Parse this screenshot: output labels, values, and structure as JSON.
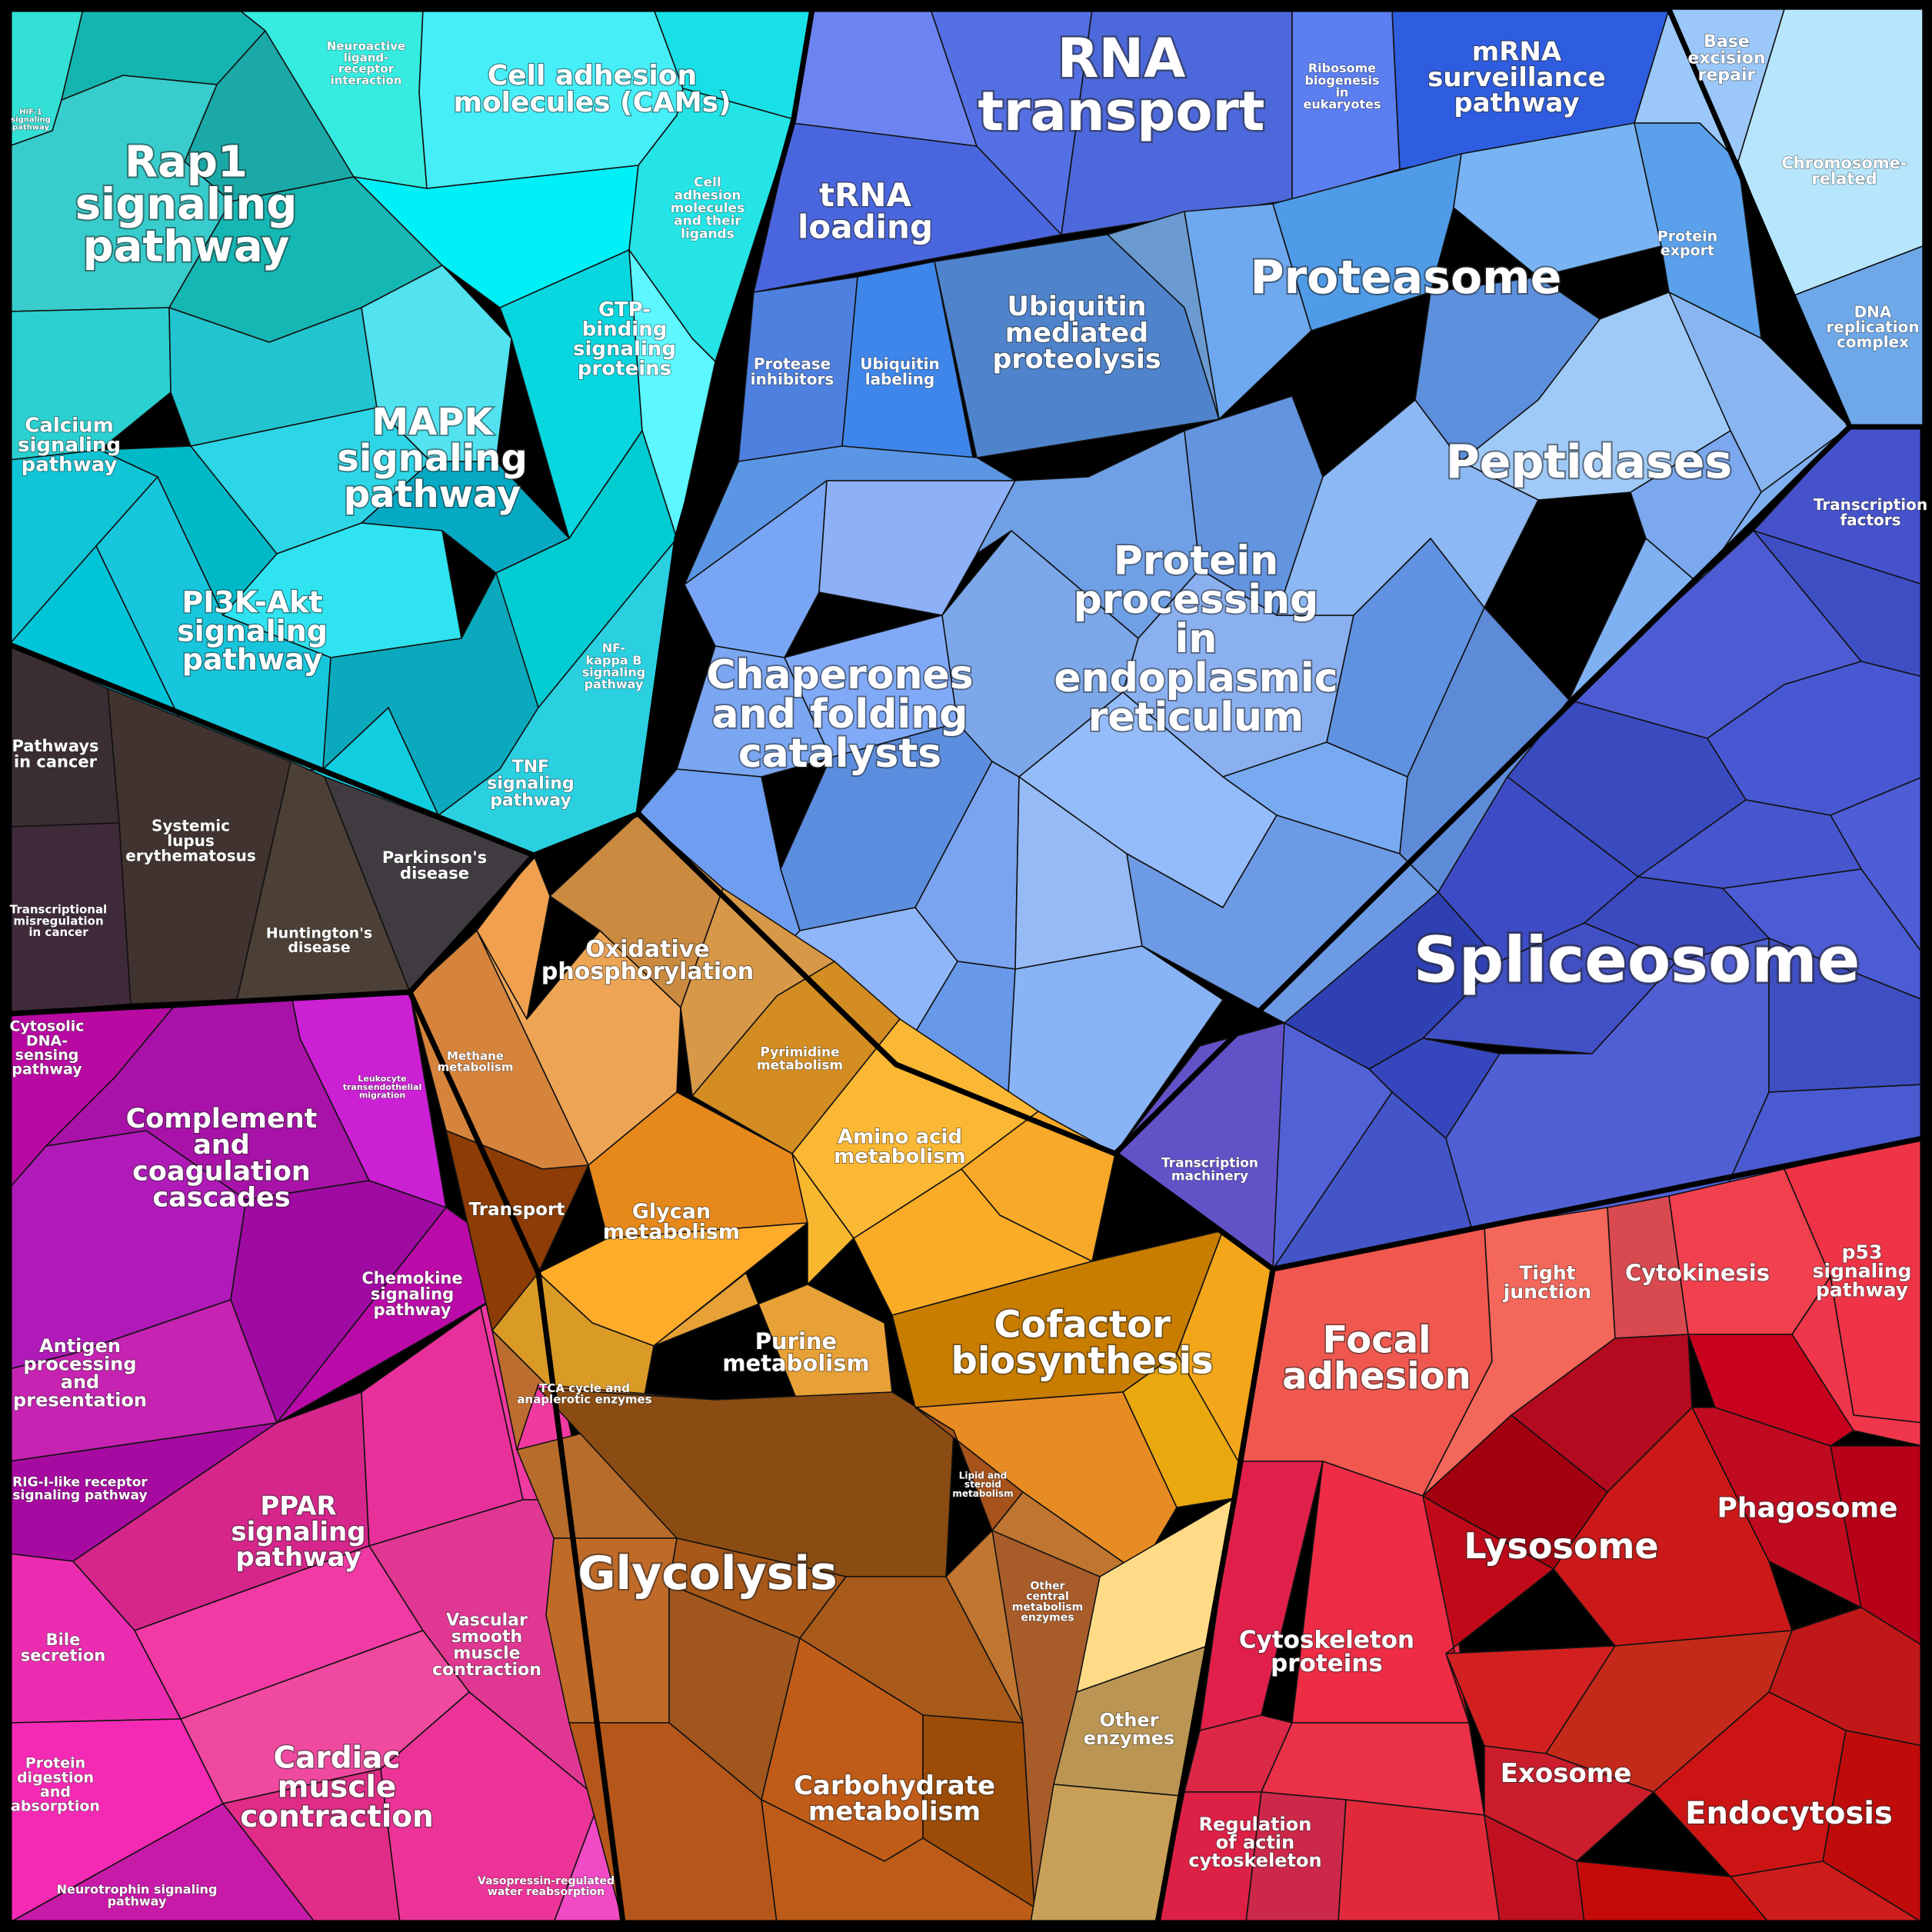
{
  "groups": [
    {
      "name": "cyan",
      "color": "#1fc9d6"
    },
    {
      "name": "dark",
      "color": "#3a3034"
    },
    {
      "name": "magenta",
      "color": "#c21ab8"
    },
    {
      "name": "blue",
      "color": "#5a8ff0"
    },
    {
      "name": "indigo",
      "color": "#4656c9"
    },
    {
      "name": "orange",
      "color": "#e39a2e"
    },
    {
      "name": "red",
      "color": "#d92b3a"
    }
  ],
  "labels": [
    {
      "id": "rap1",
      "text": [
        "Rap1",
        "signaling",
        "pathway"
      ]
    },
    {
      "id": "cams",
      "text": [
        "Cell adhesion",
        "molecules (CAMs)"
      ]
    },
    {
      "id": "neuroactive",
      "text": [
        "Neuroactive",
        "ligand-",
        "receptor",
        "interaction"
      ]
    },
    {
      "id": "hif1",
      "text": [
        "HIF-1",
        "signaling",
        "pathway"
      ]
    },
    {
      "id": "cam-ligands",
      "text": [
        "Cell",
        "adhesion",
        "molecules",
        "and their",
        "ligands"
      ]
    },
    {
      "id": "gtp",
      "text": [
        "GTP-",
        "binding",
        "signaling",
        "proteins"
      ]
    },
    {
      "id": "calcium",
      "text": [
        "Calcium",
        "signaling",
        "pathway"
      ]
    },
    {
      "id": "mapk",
      "text": [
        "MAPK",
        "signaling",
        "pathway"
      ]
    },
    {
      "id": "pi3k",
      "text": [
        "PI3K-Akt",
        "signaling",
        "pathway"
      ]
    },
    {
      "id": "nfkb",
      "text": [
        "NF-",
        "kappa B",
        "signaling",
        "pathway"
      ]
    },
    {
      "id": "tnf",
      "text": [
        "TNF",
        "signaling",
        "pathway"
      ]
    },
    {
      "id": "cancer",
      "text": [
        "Pathways",
        "in cancer"
      ]
    },
    {
      "id": "lupus",
      "text": [
        "Systemic",
        "lupus",
        "erythematosus"
      ]
    },
    {
      "id": "parkinson",
      "text": [
        "Parkinson's",
        "disease"
      ]
    },
    {
      "id": "huntington",
      "text": [
        "Huntington's",
        "disease"
      ]
    },
    {
      "id": "transcriptional-mis",
      "text": [
        "Transcriptional",
        "misregulation",
        "in cancer"
      ]
    },
    {
      "id": "rna-transport",
      "text": [
        "RNA",
        "transport"
      ]
    },
    {
      "id": "ribosome-bio",
      "text": [
        "Ribosome",
        "biogenesis",
        "in",
        "eukaryotes"
      ]
    },
    {
      "id": "mrna",
      "text": [
        "mRNA",
        "surveillance",
        "pathway"
      ]
    },
    {
      "id": "ber",
      "text": [
        "Base",
        "excision",
        "repair"
      ]
    },
    {
      "id": "chromosome",
      "text": [
        "Chromosome-",
        "related"
      ]
    },
    {
      "id": "trna",
      "text": [
        "tRNA",
        "loading"
      ]
    },
    {
      "id": "proteasome",
      "text": [
        "Proteasome"
      ]
    },
    {
      "id": "protein-export",
      "text": [
        "Protein",
        "export"
      ]
    },
    {
      "id": "dna-rep",
      "text": [
        "DNA",
        "replication",
        "complex"
      ]
    },
    {
      "id": "protease-inh",
      "text": [
        "Protease",
        "inhibitors"
      ]
    },
    {
      "id": "ub-label",
      "text": [
        "Ubiquitin",
        "labeling"
      ]
    },
    {
      "id": "ub-mediated",
      "text": [
        "Ubiquitin",
        "mediated",
        "proteolysis"
      ]
    },
    {
      "id": "peptidases",
      "text": [
        "Peptidases"
      ]
    },
    {
      "id": "tfs",
      "text": [
        "Transcription",
        "factors"
      ]
    },
    {
      "id": "chaperones",
      "text": [
        "Chaperones",
        "and folding",
        "catalysts"
      ]
    },
    {
      "id": "er",
      "text": [
        "Protein",
        "processing",
        "in",
        "endoplasmic",
        "reticulum"
      ]
    },
    {
      "id": "spliceosome",
      "text": [
        "Spliceosome"
      ]
    },
    {
      "id": "tx-machinery",
      "text": [
        "Transcription",
        "machinery"
      ]
    },
    {
      "id": "oxphos",
      "text": [
        "Oxidative",
        "phosphorylation"
      ]
    },
    {
      "id": "methane",
      "text": [
        "Methane",
        "metabolism"
      ]
    },
    {
      "id": "pyrimidine",
      "text": [
        "Pyrimidine",
        "metabolism"
      ]
    },
    {
      "id": "amino",
      "text": [
        "Amino acid",
        "metabolism"
      ]
    },
    {
      "id": "transport",
      "text": [
        "Transport"
      ]
    },
    {
      "id": "glycan",
      "text": [
        "Glycan",
        "metabolism"
      ]
    },
    {
      "id": "purine",
      "text": [
        "Purine",
        "metabolism"
      ]
    },
    {
      "id": "cofactor",
      "text": [
        "Cofactor",
        "biosynthesis"
      ]
    },
    {
      "id": "tca",
      "text": [
        "TCA cycle and",
        "anaplerotic enzymes"
      ]
    },
    {
      "id": "lipid",
      "text": [
        "Lipid and",
        "steroid",
        "metabolism"
      ]
    },
    {
      "id": "glycolysis",
      "text": [
        "Glycolysis"
      ]
    },
    {
      "id": "other-central",
      "text": [
        "Other",
        "central",
        "metabolism",
        "enzymes"
      ]
    },
    {
      "id": "other-enzymes",
      "text": [
        "Other",
        "enzymes"
      ]
    },
    {
      "id": "carbohydrate",
      "text": [
        "Carbohydrate",
        "metabolism"
      ]
    },
    {
      "id": "cytosolic-dna",
      "text": [
        "Cytosolic",
        "DNA-",
        "sensing",
        "pathway"
      ]
    },
    {
      "id": "complement",
      "text": [
        "Complement",
        "and",
        "coagulation",
        "cascades"
      ]
    },
    {
      "id": "leukocyte",
      "text": [
        "Leukocyte",
        "transendothelial",
        "migration"
      ]
    },
    {
      "id": "chemokine",
      "text": [
        "Chemokine",
        "signaling",
        "pathway"
      ]
    },
    {
      "id": "antigen",
      "text": [
        "Antigen",
        "processing",
        "and",
        "presentation"
      ]
    },
    {
      "id": "rig",
      "text": [
        "RIG-I-like receptor",
        "signaling pathway"
      ]
    },
    {
      "id": "ppar",
      "text": [
        "PPAR",
        "signaling",
        "pathway"
      ]
    },
    {
      "id": "bile",
      "text": [
        "Bile",
        "secretion"
      ]
    },
    {
      "id": "vsmc",
      "text": [
        "Vascular",
        "smooth",
        "muscle",
        "contraction"
      ]
    },
    {
      "id": "protein-digest",
      "text": [
        "Protein",
        "digestion",
        "and",
        "absorption"
      ]
    },
    {
      "id": "cardiac",
      "text": [
        "Cardiac",
        "muscle",
        "contraction"
      ]
    },
    {
      "id": "neurotrophin",
      "text": [
        "Neurotrophin signaling",
        "pathway"
      ]
    },
    {
      "id": "vasopressin",
      "text": [
        "Vasopressin-regulated",
        "water reabsorption"
      ]
    },
    {
      "id": "focal",
      "text": [
        "Focal",
        "adhesion"
      ]
    },
    {
      "id": "tight",
      "text": [
        "Tight",
        "junction"
      ]
    },
    {
      "id": "cytokinesis",
      "text": [
        "Cytokinesis"
      ]
    },
    {
      "id": "p53",
      "text": [
        "p53",
        "signaling",
        "pathway"
      ]
    },
    {
      "id": "phagosome",
      "text": [
        "Phagosome"
      ]
    },
    {
      "id": "lysosome",
      "text": [
        "Lysosome"
      ]
    },
    {
      "id": "cytoskeleton",
      "text": [
        "Cytoskeleton",
        "proteins"
      ]
    },
    {
      "id": "exosome",
      "text": [
        "Exosome"
      ]
    },
    {
      "id": "endocytosis",
      "text": [
        "Endocytosis"
      ]
    },
    {
      "id": "actin",
      "text": [
        "Regulation",
        "of actin",
        "cytoskeleton"
      ]
    }
  ]
}
